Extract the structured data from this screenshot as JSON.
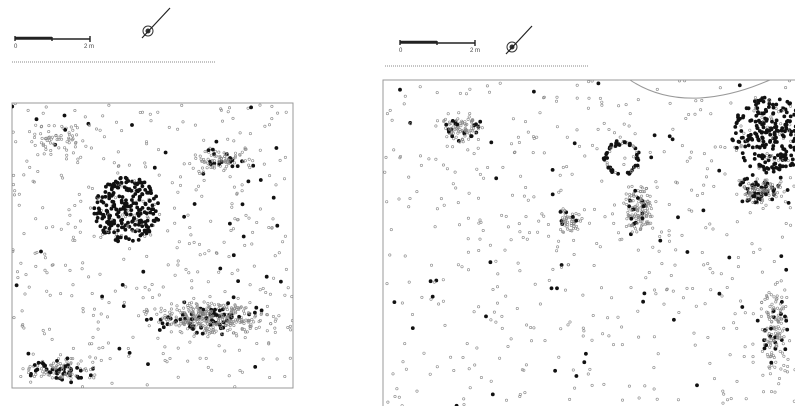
{
  "panels": [
    {
      "scale": {
        "start": "0",
        "end": "2 m"
      }
    },
    {
      "scale": {
        "start": "0",
        "end": "2 m"
      }
    }
  ]
}
